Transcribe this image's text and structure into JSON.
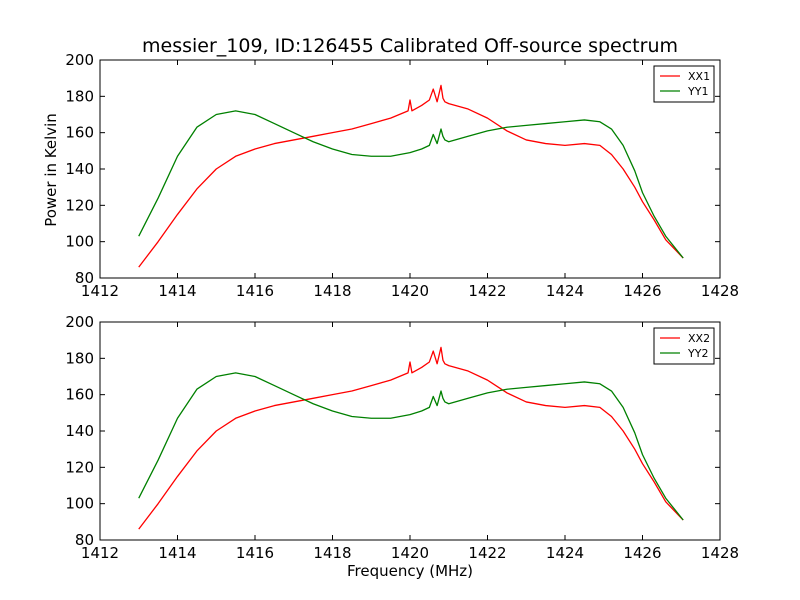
{
  "figure": {
    "title": "messier_109, ID:126455 Calibrated Off-source spectrum",
    "xlabel": "Frequency (MHz)",
    "ylabel": "Power in Kelvin"
  },
  "colors": {
    "xx": "#ff0000",
    "yy": "#008000",
    "axes": "#000000",
    "background": "#ffffff"
  },
  "chart_data": [
    {
      "type": "line",
      "title": "messier_109, ID:126455 Calibrated Off-source spectrum",
      "xlabel": "",
      "ylabel": "Power in Kelvin",
      "xlim": [
        1412,
        1428
      ],
      "ylim": [
        80,
        200
      ],
      "xticks": [
        1412,
        1414,
        1416,
        1418,
        1420,
        1422,
        1424,
        1426,
        1428
      ],
      "yticks": [
        80,
        100,
        120,
        140,
        160,
        180,
        200
      ],
      "grid": false,
      "legend_position": "top-right",
      "series": [
        {
          "name": "XX1",
          "color": "#ff0000",
          "x": [
            1413.0,
            1413.5,
            1414.0,
            1414.5,
            1415.0,
            1415.5,
            1416.0,
            1416.5,
            1417.0,
            1417.5,
            1418.0,
            1418.5,
            1419.0,
            1419.5,
            1419.95,
            1420.0,
            1420.05,
            1420.3,
            1420.5,
            1420.6,
            1420.7,
            1420.8,
            1420.85,
            1420.9,
            1421.0,
            1421.5,
            1422.0,
            1422.5,
            1423.0,
            1423.5,
            1424.0,
            1424.5,
            1424.9,
            1425.2,
            1425.5,
            1425.8,
            1426.0,
            1426.3,
            1426.6,
            1427.05
          ],
          "y": [
            86,
            100,
            115,
            129,
            140,
            147,
            151,
            154,
            156,
            158,
            160,
            162,
            165,
            168,
            172,
            178,
            172,
            175,
            178,
            184,
            177,
            186,
            179,
            177,
            176,
            173,
            168,
            161,
            156,
            154,
            153,
            154,
            153,
            148,
            140,
            130,
            122,
            112,
            101,
            91
          ]
        },
        {
          "name": "YY1",
          "color": "#008000",
          "x": [
            1413.0,
            1413.5,
            1414.0,
            1414.5,
            1415.0,
            1415.5,
            1416.0,
            1416.5,
            1417.0,
            1417.5,
            1418.0,
            1418.5,
            1419.0,
            1419.5,
            1420.0,
            1420.3,
            1420.5,
            1420.6,
            1420.7,
            1420.8,
            1420.85,
            1420.9,
            1421.0,
            1421.5,
            1422.0,
            1422.5,
            1423.0,
            1423.5,
            1424.0,
            1424.5,
            1424.9,
            1425.2,
            1425.5,
            1425.8,
            1426.0,
            1426.3,
            1426.6,
            1427.05
          ],
          "y": [
            103,
            124,
            147,
            163,
            170,
            172,
            170,
            165,
            160,
            155,
            151,
            148,
            147,
            147,
            149,
            151,
            153,
            159,
            154,
            162,
            158,
            156,
            155,
            158,
            161,
            163,
            164,
            165,
            166,
            167,
            166,
            162,
            153,
            139,
            127,
            114,
            103,
            91
          ]
        }
      ]
    },
    {
      "type": "line",
      "title": "",
      "xlabel": "Frequency (MHz)",
      "ylabel": "",
      "xlim": [
        1412,
        1428
      ],
      "ylim": [
        80,
        200
      ],
      "xticks": [
        1412,
        1414,
        1416,
        1418,
        1420,
        1422,
        1424,
        1426,
        1428
      ],
      "yticks": [
        80,
        100,
        120,
        140,
        160,
        180,
        200
      ],
      "grid": false,
      "legend_position": "top-right",
      "series": [
        {
          "name": "XX2",
          "color": "#ff0000",
          "x": [
            1413.0,
            1413.5,
            1414.0,
            1414.5,
            1415.0,
            1415.5,
            1416.0,
            1416.5,
            1417.0,
            1417.5,
            1418.0,
            1418.5,
            1419.0,
            1419.5,
            1419.95,
            1420.0,
            1420.05,
            1420.3,
            1420.5,
            1420.6,
            1420.7,
            1420.8,
            1420.85,
            1420.9,
            1421.0,
            1421.5,
            1422.0,
            1422.5,
            1423.0,
            1423.5,
            1424.0,
            1424.5,
            1424.9,
            1425.2,
            1425.5,
            1425.8,
            1426.0,
            1426.3,
            1426.6,
            1427.05
          ],
          "y": [
            86,
            100,
            115,
            129,
            140,
            147,
            151,
            154,
            156,
            158,
            160,
            162,
            165,
            168,
            172,
            178,
            172,
            175,
            178,
            184,
            177,
            186,
            179,
            177,
            176,
            173,
            168,
            161,
            156,
            154,
            153,
            154,
            153,
            148,
            140,
            130,
            122,
            112,
            101,
            91
          ]
        },
        {
          "name": "YY2",
          "color": "#008000",
          "x": [
            1413.0,
            1413.5,
            1414.0,
            1414.5,
            1415.0,
            1415.5,
            1416.0,
            1416.5,
            1417.0,
            1417.5,
            1418.0,
            1418.5,
            1419.0,
            1419.5,
            1420.0,
            1420.3,
            1420.5,
            1420.6,
            1420.7,
            1420.8,
            1420.85,
            1420.9,
            1421.0,
            1421.5,
            1422.0,
            1422.5,
            1423.0,
            1423.5,
            1424.0,
            1424.5,
            1424.9,
            1425.2,
            1425.5,
            1425.8,
            1426.0,
            1426.3,
            1426.6,
            1427.05
          ],
          "y": [
            103,
            124,
            147,
            163,
            170,
            172,
            170,
            165,
            160,
            155,
            151,
            148,
            147,
            147,
            149,
            151,
            153,
            159,
            154,
            162,
            158,
            156,
            155,
            158,
            161,
            163,
            164,
            165,
            166,
            167,
            166,
            162,
            153,
            139,
            127,
            114,
            103,
            91
          ]
        }
      ]
    }
  ]
}
